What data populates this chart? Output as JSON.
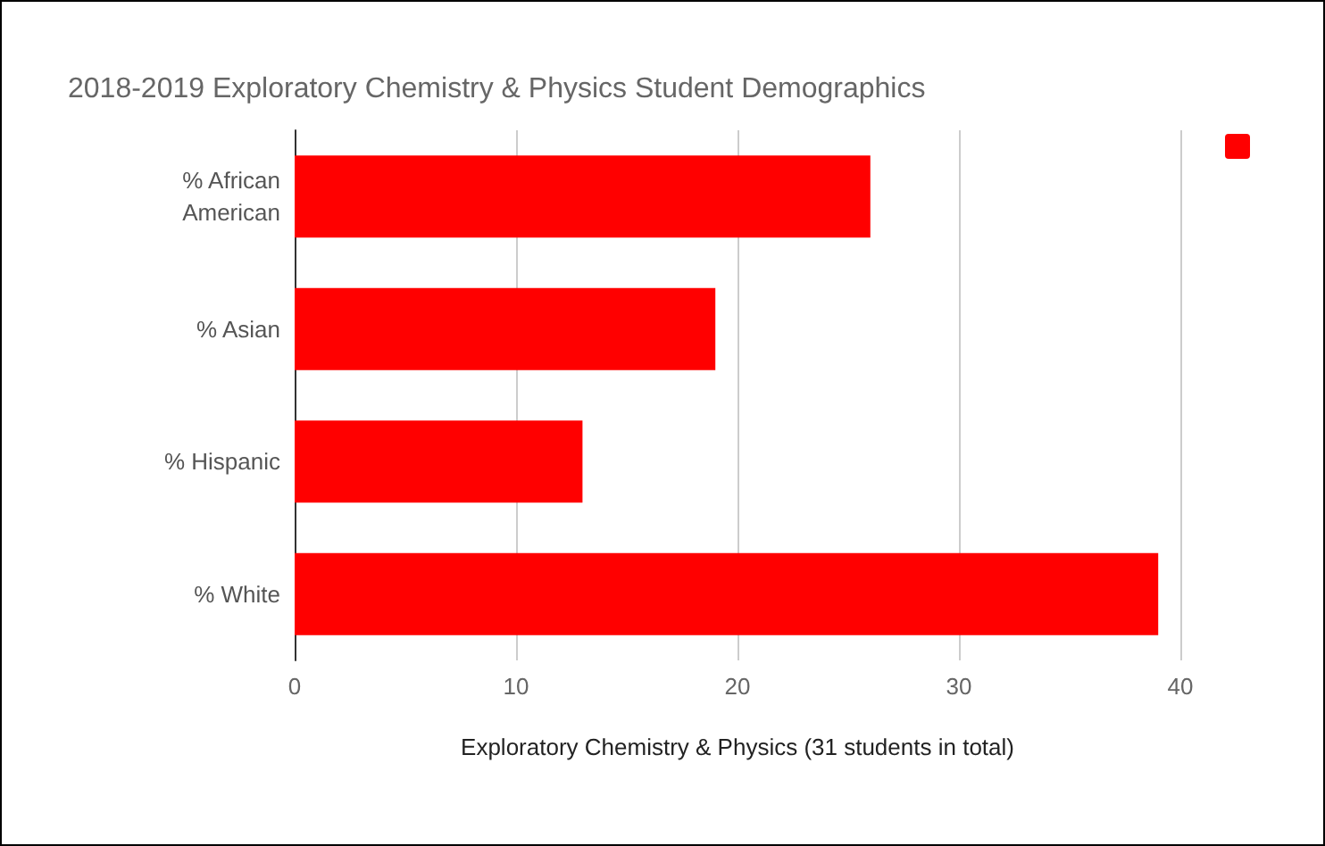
{
  "chart_data": {
    "type": "bar",
    "orientation": "horizontal",
    "title": "2018-2019 Exploratory Chemistry & Physics Student Demographics",
    "xlabel": "Exploratory Chemistry & Physics (31 students in total)",
    "categories": [
      "% African\nAmerican",
      "% Asian",
      "% Hispanic",
      "% White"
    ],
    "series": [
      {
        "color": "#ff0000",
        "values": [
          26,
          19,
          13,
          39
        ]
      }
    ],
    "xlim": [
      0,
      40
    ],
    "xticks": [
      0,
      10,
      20,
      30,
      40
    ],
    "grid": "x"
  }
}
